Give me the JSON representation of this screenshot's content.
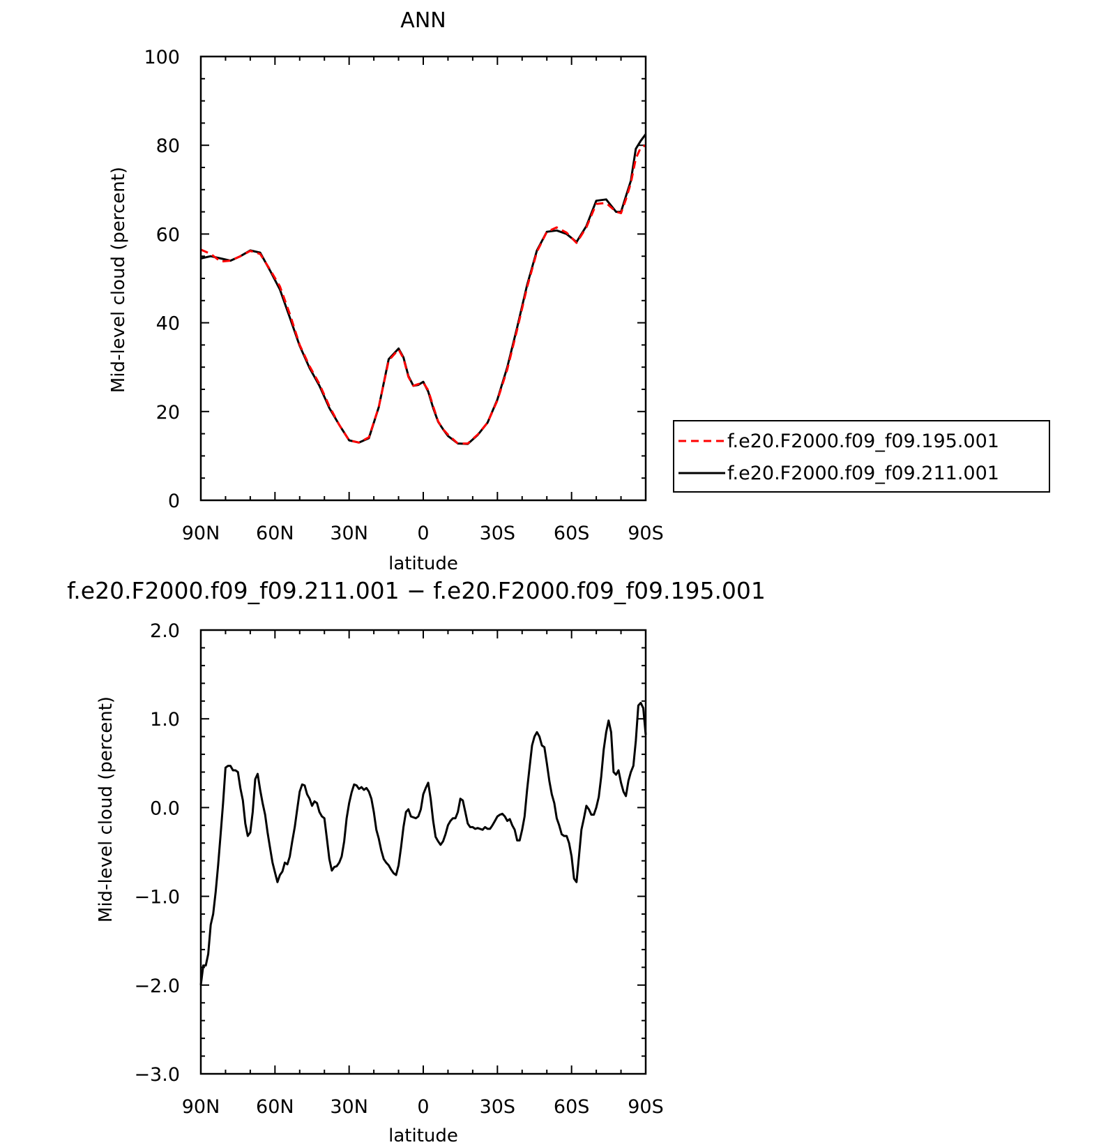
{
  "chart_data": [
    {
      "type": "line",
      "title": "ANN",
      "xlabel": "latitude",
      "ylabel": "Mid-level cloud (percent)",
      "xlim": [
        -90,
        90
      ],
      "ylim": [
        0,
        100
      ],
      "x_direction": "90N on left, 90S on right",
      "xticks": [
        {
          "value": 90,
          "label": "90N"
        },
        {
          "value": 60,
          "label": "60N"
        },
        {
          "value": 30,
          "label": "30N"
        },
        {
          "value": 0,
          "label": "0"
        },
        {
          "value": -30,
          "label": "30S"
        },
        {
          "value": -60,
          "label": "60S"
        },
        {
          "value": -90,
          "label": "90S"
        }
      ],
      "yticks": [
        {
          "value": 0,
          "label": "0"
        },
        {
          "value": 20,
          "label": "20"
        },
        {
          "value": 40,
          "label": "40"
        },
        {
          "value": 60,
          "label": "60"
        },
        {
          "value": 80,
          "label": "80"
        },
        {
          "value": 100,
          "label": "100"
        }
      ],
      "legend_position": "right, outside plot",
      "series": [
        {
          "name": "f.e20.F2000.f09_f09.195.001",
          "color": "#ff0000",
          "style": "dashed",
          "x": [
            90,
            86,
            82,
            78,
            74,
            70,
            66,
            62,
            58,
            54,
            50,
            46,
            42,
            38,
            34,
            30,
            26,
            22,
            18,
            14,
            10,
            8,
            6,
            4,
            2,
            0,
            -2,
            -4,
            -6,
            -8,
            -10,
            -14,
            -18,
            -22,
            -26,
            -30,
            -34,
            -38,
            -42,
            -46,
            -50,
            -54,
            -58,
            -62,
            -66,
            -70,
            -74,
            -78,
            -80,
            -82,
            -84,
            -86,
            -88,
            -90
          ],
          "y": [
            56.5,
            55.5,
            53.8,
            54.0,
            55.0,
            56.2,
            55.5,
            52.0,
            48.2,
            42.0,
            35.0,
            30.2,
            26.2,
            21.2,
            17.0,
            13.5,
            13.0,
            14.2,
            21.0,
            31.5,
            34.0,
            32.0,
            27.8,
            25.8,
            26.2,
            26.5,
            24.8,
            21.2,
            17.8,
            16.0,
            14.8,
            12.8,
            12.8,
            14.8,
            17.5,
            22.5,
            29.5,
            38.5,
            48.0,
            56.0,
            60.5,
            61.5,
            60.3,
            58.0,
            61.5,
            66.8,
            67.0,
            65.0,
            64.7,
            67.8,
            71.5,
            77.0,
            79.5,
            80.0
          ]
        },
        {
          "name": "f.e20.F2000.f09_f09.211.001",
          "color": "#000000",
          "style": "solid",
          "x": [
            90,
            86,
            82,
            78,
            74,
            70,
            66,
            62,
            58,
            54,
            50,
            46,
            42,
            38,
            34,
            30,
            26,
            22,
            18,
            14,
            10,
            8,
            6,
            4,
            2,
            0,
            -2,
            -4,
            -6,
            -8,
            -10,
            -14,
            -18,
            -22,
            -26,
            -30,
            -34,
            -38,
            -42,
            -46,
            -50,
            -54,
            -58,
            -62,
            -66,
            -70,
            -74,
            -78,
            -80,
            -82,
            -84,
            -86,
            -88,
            -90
          ],
          "y": [
            54.5,
            55.0,
            54.5,
            54.0,
            55.0,
            56.3,
            55.8,
            51.8,
            47.5,
            41.2,
            34.8,
            29.8,
            25.8,
            20.8,
            17.0,
            13.5,
            13.0,
            14.0,
            21.0,
            31.8,
            34.2,
            32.2,
            28.0,
            25.8,
            26.0,
            26.7,
            24.5,
            20.8,
            17.7,
            16.0,
            14.5,
            12.8,
            12.7,
            14.7,
            17.5,
            22.7,
            30.0,
            39.0,
            48.5,
            56.3,
            60.5,
            60.8,
            60.0,
            58.2,
            61.8,
            67.5,
            67.8,
            65.0,
            65.0,
            68.5,
            72.0,
            79.2,
            81.0,
            82.5
          ]
        }
      ]
    },
    {
      "type": "line",
      "title": "f.e20.F2000.f09_f09.211.001 − f.e20.F2000.f09_f09.195.001",
      "xlabel": "latitude",
      "ylabel": "Mid-level cloud (percent)",
      "xlim": [
        -90,
        90
      ],
      "ylim": [
        -3.0,
        2.0
      ],
      "x_direction": "90N on left, 90S on right",
      "xticks": [
        {
          "value": 90,
          "label": "90N"
        },
        {
          "value": 60,
          "label": "60N"
        },
        {
          "value": 30,
          "label": "30N"
        },
        {
          "value": 0,
          "label": "0"
        },
        {
          "value": -30,
          "label": "30S"
        },
        {
          "value": -60,
          "label": "60S"
        },
        {
          "value": -90,
          "label": "90S"
        }
      ],
      "yticks": [
        {
          "value": -3.0,
          "label": "−3.0"
        },
        {
          "value": -2.0,
          "label": "−2.0"
        },
        {
          "value": -1.0,
          "label": "−1.0"
        },
        {
          "value": 0.0,
          "label": "0.0"
        },
        {
          "value": 1.0,
          "label": "1.0"
        },
        {
          "value": 2.0,
          "label": "2.0"
        }
      ],
      "series": [
        {
          "color": "#000000",
          "style": "solid",
          "x": [
            90,
            89,
            88,
            87,
            86,
            85,
            84,
            83,
            82,
            81,
            80,
            79,
            78,
            77,
            76,
            75,
            74,
            73,
            72,
            71,
            70,
            69,
            68,
            67,
            66,
            65,
            64,
            63,
            62,
            61,
            60,
            59,
            58,
            57,
            56,
            55,
            54,
            53,
            52,
            51,
            50,
            49,
            48,
            47,
            46,
            45,
            44,
            43,
            42,
            41,
            40,
            39,
            38,
            37,
            36,
            35,
            34,
            33,
            32,
            31,
            30,
            29,
            28,
            27,
            26,
            25,
            24,
            23,
            22,
            21,
            20,
            19,
            18,
            17,
            16,
            15,
            14,
            13,
            12,
            11,
            10,
            9,
            8,
            7,
            6,
            5,
            4,
            3,
            2,
            1,
            0,
            -1,
            -2,
            -3,
            -4,
            -5,
            -6,
            -7,
            -8,
            -9,
            -10,
            -11,
            -12,
            -13,
            -14,
            -15,
            -16,
            -17,
            -18,
            -19,
            -20,
            -21,
            -22,
            -23,
            -24,
            -25,
            -26,
            -27,
            -28,
            -29,
            -30,
            -31,
            -32,
            -33,
            -34,
            -35,
            -36,
            -37,
            -38,
            -39,
            -40,
            -41,
            -42,
            -43,
            -44,
            -45,
            -46,
            -47,
            -48,
            -49,
            -50,
            -51,
            -52,
            -53,
            -54,
            -55,
            -56,
            -57,
            -58,
            -59,
            -60,
            -61,
            -62,
            -63,
            -64,
            -65,
            -66,
            -67,
            -68,
            -69,
            -70,
            -71,
            -72,
            -73,
            -74,
            -75,
            -76,
            -77,
            -78,
            -79,
            -80,
            -81,
            -82,
            -83,
            -84,
            -85,
            -86,
            -87,
            -88,
            -89,
            -90
          ],
          "y": [
            -2.0,
            -1.78,
            -1.78,
            -1.65,
            -1.32,
            -1.2,
            -0.95,
            -0.65,
            -0.3,
            0.05,
            0.45,
            0.47,
            0.47,
            0.42,
            0.42,
            0.4,
            0.22,
            0.08,
            -0.18,
            -0.32,
            -0.28,
            -0.05,
            0.32,
            0.38,
            0.2,
            0.05,
            -0.08,
            -0.28,
            -0.45,
            -0.62,
            -0.73,
            -0.84,
            -0.76,
            -0.72,
            -0.62,
            -0.64,
            -0.55,
            -0.38,
            -0.22,
            -0.02,
            0.18,
            0.26,
            0.25,
            0.15,
            0.1,
            0.02,
            0.07,
            0.05,
            -0.05,
            -0.1,
            -0.12,
            -0.35,
            -0.58,
            -0.71,
            -0.67,
            -0.66,
            -0.62,
            -0.55,
            -0.38,
            -0.12,
            0.05,
            0.17,
            0.26,
            0.25,
            0.21,
            0.23,
            0.2,
            0.22,
            0.18,
            0.1,
            -0.05,
            -0.25,
            -0.35,
            -0.48,
            -0.58,
            -0.62,
            -0.65,
            -0.7,
            -0.74,
            -0.76,
            -0.65,
            -0.45,
            -0.22,
            -0.05,
            -0.02,
            -0.1,
            -0.11,
            -0.12,
            -0.1,
            -0.02,
            0.15,
            0.22,
            0.28,
            0.1,
            -0.15,
            -0.33,
            -0.38,
            -0.42,
            -0.38,
            -0.3,
            -0.2,
            -0.15,
            -0.12,
            -0.12,
            -0.05,
            0.1,
            0.08,
            -0.05,
            -0.18,
            -0.22,
            -0.22,
            -0.24,
            -0.23,
            -0.24,
            -0.25,
            -0.22,
            -0.24,
            -0.24,
            -0.2,
            -0.15,
            -0.1,
            -0.08,
            -0.07,
            -0.1,
            -0.15,
            -0.13,
            -0.2,
            -0.25,
            -0.37,
            -0.37,
            -0.25,
            -0.1,
            0.2,
            0.45,
            0.7,
            0.8,
            0.85,
            0.8,
            0.7,
            0.68,
            0.5,
            0.3,
            0.15,
            0.05,
            -0.12,
            -0.2,
            -0.3,
            -0.32,
            -0.32,
            -0.4,
            -0.55,
            -0.8,
            -0.84,
            -0.55,
            -0.25,
            -0.12,
            0.02,
            -0.02,
            -0.08,
            -0.08,
            0.0,
            0.12,
            0.35,
            0.65,
            0.85,
            0.98,
            0.85,
            0.4,
            0.37,
            0.42,
            0.28,
            0.18,
            0.13,
            0.3,
            0.4,
            0.47,
            0.75,
            1.15,
            1.18,
            1.12,
            0.82
          ]
        }
      ]
    }
  ]
}
